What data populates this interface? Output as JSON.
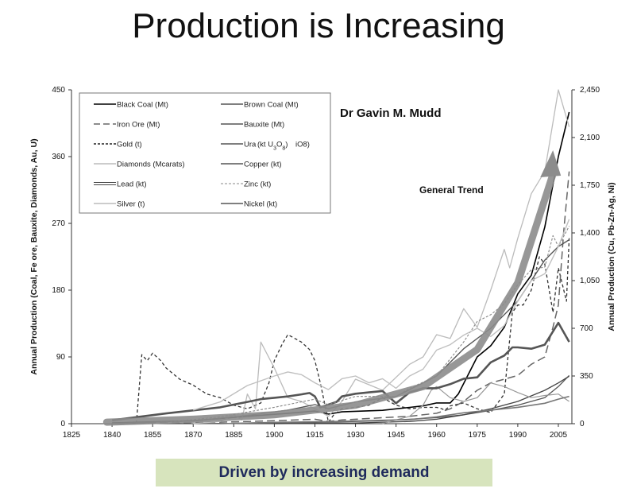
{
  "slide": {
    "title": "Production is Increasing",
    "footer": "Driven by increasing demand",
    "footer_bg": "#d7e4bd",
    "footer_color": "#1f2a5c"
  },
  "chart_data": {
    "type": "line",
    "author": "Dr Gavin M. Mudd",
    "annotation": "General Trend",
    "ylabel_left": "Annual Production (Coal, Fe ore, Bauxite, Diamonds, Au, U)",
    "ylabel_right": "Annual Production (Cu, Pb-Zn-Ag, Ni)",
    "xlim": [
      1825,
      2010
    ],
    "ylim_left": [
      0,
      450
    ],
    "ylim_right": [
      0,
      2450
    ],
    "x_ticks": [
      "1825",
      "1840",
      "1855",
      "1870",
      "1885",
      "1900",
      "1915",
      "1930",
      "1945",
      "1960",
      "1975",
      "1990",
      "2005"
    ],
    "y_left_ticks": [
      "0",
      "90",
      "180",
      "270",
      "360",
      "450"
    ],
    "y_right_ticks": [
      "0",
      "350",
      "700",
      "1,050",
      "1,400",
      "1,750",
      "2,100",
      "2,450"
    ],
    "legend": [
      {
        "label": "Black Coal (Mt)",
        "style": "solid-dark"
      },
      {
        "label": "Brown Coal (Mt)",
        "style": "solid-mid"
      },
      {
        "label": "Iron Ore (Mt)",
        "style": "longdash"
      },
      {
        "label": "Bauxite (Mt)",
        "style": "solid-mid"
      },
      {
        "label": "Gold (t)",
        "style": "dash-dark"
      },
      {
        "label": "Ura",
        "style": "solid-mid"
      },
      {
        "label": "Diamonds (Mcarats)",
        "style": "solid-light"
      },
      {
        "label": "Copper (kt)",
        "style": "solid-mid"
      },
      {
        "label": "Lead (kt)",
        "style": "double"
      },
      {
        "label": "Zinc (kt)",
        "style": "dash-light"
      },
      {
        "label": "Silver (t)",
        "style": "solid-light"
      },
      {
        "label": "Nickel (kt)",
        "style": "solid-mid"
      }
    ],
    "legend_overlay": {
      "pre": "(kt U",
      "sub1": "3",
      "mid": "O",
      "sub2": "8",
      "post": ")",
      "tail": "iO8)"
    },
    "series": [
      {
        "name": "Black Coal (Mt)",
        "axis": "left",
        "color": "#000000",
        "width": 1.6,
        "dash": "",
        "x": [
          1840,
          1870,
          1890,
          1905,
          1915,
          1920,
          1925,
          1940,
          1950,
          1955,
          1960,
          1965,
          1968,
          1975,
          1980,
          1985,
          1990,
          1995,
          2000,
          2005,
          2009
        ],
        "y": [
          1,
          4,
          10,
          14,
          17,
          13,
          16,
          18,
          22,
          24,
          28,
          28,
          40,
          90,
          105,
          130,
          175,
          200,
          265,
          360,
          420
        ]
      },
      {
        "name": "Gold (t)",
        "axis": "left",
        "color": "#333333",
        "width": 1.3,
        "dash": "4,3",
        "x": [
          1849,
          1851,
          1853,
          1855,
          1858,
          1860,
          1865,
          1870,
          1875,
          1880,
          1885,
          1890,
          1895,
          1898,
          1900,
          1903,
          1905,
          1910,
          1913,
          1915,
          1917,
          1919,
          1920,
          1922,
          1925,
          1930,
          1935,
          1940,
          1945,
          1950,
          1955,
          1960,
          1962,
          1963,
          1965,
          1970,
          1975,
          1980,
          1985,
          1988,
          1990,
          1992,
          1995,
          1998,
          2000,
          2003,
          2005,
          2008,
          2009
        ],
        "y": [
          0,
          93,
          85,
          95,
          85,
          75,
          60,
          52,
          40,
          35,
          25,
          20,
          28,
          55,
          85,
          108,
          120,
          110,
          100,
          85,
          55,
          20,
          2,
          12,
          20,
          22,
          25,
          35,
          25,
          20,
          22,
          22,
          20,
          18,
          24,
          28,
          20,
          15,
          40,
          150,
          160,
          160,
          180,
          225,
          215,
          150,
          210,
          165,
          250
        ]
      },
      {
        "name": "Iron Ore (Mt)",
        "axis": "left",
        "color": "#666666",
        "width": 1.5,
        "dash": "10,5",
        "x": [
          1840,
          1880,
          1900,
          1915,
          1920,
          1925,
          1940,
          1950,
          1960,
          1965,
          1970,
          1975,
          1980,
          1985,
          1990,
          1995,
          2000,
          2003,
          2005,
          2007,
          2009
        ],
        "y": [
          0,
          2,
          4,
          6,
          3,
          5,
          8,
          10,
          14,
          20,
          30,
          45,
          55,
          60,
          65,
          80,
          90,
          130,
          160,
          260,
          340
        ]
      },
      {
        "name": "Brown Coal (Mt)",
        "axis": "left",
        "color": "#555555",
        "width": 1.3,
        "dash": "",
        "x": [
          1870,
          1900,
          1920,
          1940,
          1950,
          1960,
          1970,
          1980,
          1990,
          2000,
          2005,
          2009
        ],
        "y": [
          0,
          1,
          2,
          4,
          6,
          8,
          12,
          18,
          25,
          35,
          50,
          65
        ]
      },
      {
        "name": "Bauxite (Mt)",
        "axis": "left",
        "color": "#444444",
        "width": 1.3,
        "dash": "",
        "x": [
          1900,
          1930,
          1950,
          1960,
          1970,
          1980,
          1990,
          2000,
          2005,
          2009
        ],
        "y": [
          0,
          1,
          3,
          6,
          12,
          20,
          30,
          45,
          55,
          64
        ]
      },
      {
        "name": "Diamonds (Mcarats)",
        "axis": "left",
        "color": "#bbbbbb",
        "width": 1.3,
        "dash": "",
        "x": [
          1870,
          1880,
          1885,
          1888,
          1890,
          1893,
          1895,
          1900,
          1905,
          1910,
          1915,
          1920,
          1925,
          1930,
          1940,
          1950,
          1955,
          1960,
          1965,
          1970,
          1975,
          1980,
          1985,
          1987,
          1990,
          1995,
          2000,
          2005,
          2009
        ],
        "y": [
          0,
          3,
          12,
          5,
          40,
          20,
          110,
          75,
          35,
          30,
          20,
          10,
          30,
          60,
          45,
          80,
          90,
          120,
          115,
          155,
          130,
          180,
          235,
          210,
          250,
          310,
          340,
          450,
          400
        ]
      },
      {
        "name": "Ura",
        "axis": "left",
        "color": "#999999",
        "width": 1.2,
        "dash": "",
        "x": [
          1940,
          1945,
          1950,
          1955,
          1958,
          1960,
          1965,
          1970,
          1975,
          1980,
          1985,
          1990,
          1995,
          2000,
          2005,
          2009
        ],
        "y": [
          0,
          5,
          10,
          25,
          45,
          50,
          35,
          30,
          35,
          55,
          50,
          42,
          35,
          38,
          40,
          30
        ]
      },
      {
        "name": "Copper (kt)",
        "axis": "right",
        "color": "#555555",
        "width": 1.4,
        "dash": "",
        "x": [
          1840,
          1870,
          1890,
          1905,
          1915,
          1920,
          1930,
          1945,
          1950,
          1960,
          1970,
          1980,
          1990,
          2000,
          2005,
          2009
        ],
        "y": [
          2,
          20,
          60,
          100,
          140,
          110,
          160,
          200,
          250,
          350,
          550,
          700,
          900,
          1200,
          1300,
          1350
        ]
      },
      {
        "name": "Lead (kt)",
        "axis": "right",
        "color": "#555555",
        "width": 2.6,
        "dash": "",
        "x": [
          1840,
          1860,
          1880,
          1890,
          1895,
          1900,
          1905,
          1910,
          1913,
          1915,
          1917,
          1920,
          1923,
          1925,
          1930,
          1935,
          1940,
          1945,
          1950,
          1955,
          1960,
          1965,
          1970,
          1975,
          1980,
          1985,
          1988,
          1990,
          1995,
          2000,
          2005,
          2009
        ],
        "y": [
          25,
          75,
          120,
          160,
          180,
          190,
          200,
          215,
          225,
          200,
          120,
          140,
          160,
          200,
          220,
          230,
          240,
          150,
          230,
          260,
          260,
          290,
          330,
          340,
          450,
          500,
          560,
          560,
          550,
          580,
          740,
          600
        ]
      },
      {
        "name": "Zinc (kt)",
        "axis": "right",
        "color": "#888888",
        "width": 1.1,
        "dash": "3,2",
        "x": [
          1860,
          1880,
          1900,
          1915,
          1920,
          1930,
          1945,
          1950,
          1960,
          1970,
          1975,
          1980,
          1985,
          1990,
          1995,
          2000,
          2003,
          2005,
          2009
        ],
        "y": [
          10,
          50,
          120,
          180,
          140,
          200,
          200,
          260,
          350,
          600,
          750,
          800,
          880,
          1020,
          1130,
          1150,
          1380,
          1300,
          1450
        ]
      },
      {
        "name": "Silver (t)",
        "axis": "right",
        "color": "#c0c0c0",
        "width": 1.4,
        "dash": "",
        "x": [
          1870,
          1880,
          1890,
          1900,
          1905,
          1910,
          1915,
          1920,
          1925,
          1930,
          1935,
          1940,
          1945,
          1950,
          1955,
          1960,
          1965,
          1970,
          1975,
          1980,
          1985,
          1990,
          1995,
          2000,
          2005,
          2009
        ],
        "y": [
          100,
          160,
          280,
          350,
          380,
          360,
          300,
          250,
          330,
          350,
          300,
          330,
          260,
          350,
          400,
          540,
          580,
          650,
          700,
          640,
          720,
          900,
          1050,
          1100,
          1300,
          1500
        ]
      },
      {
        "name": "Nickel (kt)",
        "axis": "right",
        "color": "#777777",
        "width": 1.6,
        "dash": "",
        "x": [
          1880,
          1900,
          1920,
          1940,
          1950,
          1960,
          1970,
          1980,
          1990,
          2000,
          2005,
          2009
        ],
        "y": [
          0,
          10,
          15,
          25,
          30,
          50,
          80,
          100,
          120,
          150,
          180,
          200
        ]
      }
    ],
    "trend_arrow": {
      "x": [
        1838,
        1870,
        1900,
        1930,
        1955,
        1975,
        1990,
        2003
      ],
      "y_left": [
        2,
        6,
        12,
        25,
        50,
        100,
        190,
        360
      ]
    }
  }
}
